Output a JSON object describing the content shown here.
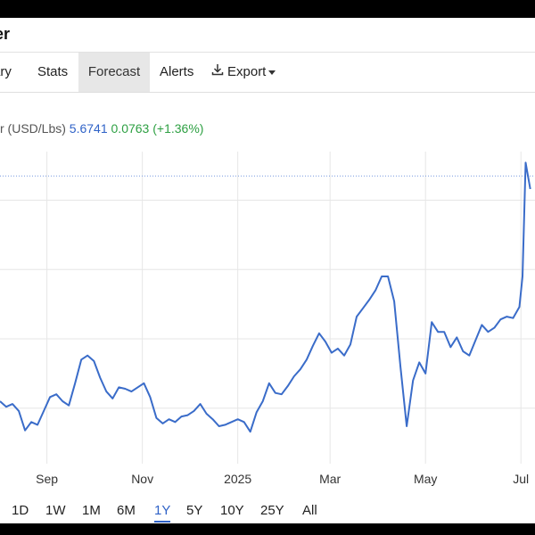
{
  "header": {
    "title": "er"
  },
  "tabs": [
    {
      "label": "ary"
    },
    {
      "label": "Stats"
    },
    {
      "label": "Forecast"
    },
    {
      "label": "Alerts"
    },
    {
      "label": "Export"
    }
  ],
  "quote": {
    "label": "r (USD/Lbs)",
    "price": "5.6741",
    "change": "0.0763",
    "change_pct": "(+1.36%)"
  },
  "ranges": [
    "1D",
    "1W",
    "1M",
    "6M",
    "1Y",
    "5Y",
    "10Y",
    "25Y",
    "All"
  ],
  "active_range": "1Y",
  "colors": {
    "line": "#3a6cc9",
    "positive": "#2ea043",
    "price": "#2f62c7",
    "active_tab_bg": "#e7e7e7"
  },
  "chart_data": {
    "type": "line",
    "x_tick_labels": [
      "Sep",
      "Nov",
      "2025",
      "Mar",
      "May",
      "Jul"
    ],
    "x_ticks": [
      "2024-09-01",
      "2024-11-01",
      "2025-01-01",
      "2025-03-01",
      "2025-05-01",
      "2025-07-01"
    ],
    "xlim": [
      "2024-08-02",
      "2025-07-10"
    ],
    "ylim": [
      3.6,
      5.85
    ],
    "last_value": 5.6741,
    "grid": true,
    "series": [
      {
        "x": [
          "2024-08-02",
          "2024-08-06",
          "2024-08-10",
          "2024-08-14",
          "2024-08-18",
          "2024-08-22",
          "2024-08-26",
          "2024-08-30",
          "2024-09-03",
          "2024-09-07",
          "2024-09-11",
          "2024-09-15",
          "2024-09-19",
          "2024-09-23",
          "2024-09-27",
          "2024-10-01",
          "2024-10-05",
          "2024-10-09",
          "2024-10-13",
          "2024-10-17",
          "2024-10-21",
          "2024-10-25",
          "2024-10-29",
          "2024-11-02",
          "2024-11-06",
          "2024-11-10",
          "2024-11-14",
          "2024-11-18",
          "2024-11-22",
          "2024-11-26",
          "2024-11-30",
          "2024-12-04",
          "2024-12-08",
          "2024-12-12",
          "2024-12-16",
          "2024-12-20",
          "2024-12-24",
          "2024-12-28",
          "2025-01-01",
          "2025-01-05",
          "2025-01-09",
          "2025-01-13",
          "2025-01-17",
          "2025-01-21",
          "2025-01-25",
          "2025-01-29",
          "2025-02-02",
          "2025-02-06",
          "2025-02-10",
          "2025-02-14",
          "2025-02-18",
          "2025-02-22",
          "2025-02-26",
          "2025-03-02",
          "2025-03-06",
          "2025-03-10",
          "2025-03-14",
          "2025-03-18",
          "2025-03-22",
          "2025-03-26",
          "2025-03-30",
          "2025-04-03",
          "2025-04-07",
          "2025-04-11",
          "2025-04-15",
          "2025-04-19",
          "2025-04-23",
          "2025-04-27",
          "2025-05-01",
          "2025-05-05",
          "2025-05-09",
          "2025-05-13",
          "2025-05-17",
          "2025-05-21",
          "2025-05-25",
          "2025-05-29",
          "2025-06-02",
          "2025-06-06",
          "2025-06-10",
          "2025-06-14",
          "2025-06-18",
          "2025-06-22",
          "2025-06-26",
          "2025-06-30",
          "2025-07-02",
          "2025-07-04",
          "2025-07-07"
        ],
        "y": [
          4.05,
          4.01,
          4.03,
          3.98,
          3.84,
          3.9,
          3.88,
          3.98,
          4.08,
          4.1,
          4.05,
          4.02,
          4.18,
          4.35,
          4.38,
          4.34,
          4.22,
          4.12,
          4.07,
          4.15,
          4.14,
          4.12,
          4.15,
          4.18,
          4.08,
          3.93,
          3.89,
          3.92,
          3.9,
          3.94,
          3.95,
          3.98,
          4.03,
          3.96,
          3.92,
          3.87,
          3.88,
          3.9,
          3.92,
          3.9,
          3.83,
          3.97,
          4.05,
          4.18,
          4.11,
          4.1,
          4.16,
          4.23,
          4.28,
          4.35,
          4.45,
          4.54,
          4.48,
          4.4,
          4.43,
          4.38,
          4.46,
          4.66,
          4.72,
          4.78,
          4.85,
          4.95,
          4.95,
          4.77,
          4.3,
          3.87,
          4.2,
          4.33,
          4.25,
          4.62,
          4.55,
          4.55,
          4.44,
          4.51,
          4.41,
          4.38,
          4.49,
          4.6,
          4.55,
          4.58,
          4.64,
          4.66,
          4.65,
          4.73,
          4.95,
          5.77,
          5.58
        ]
      }
    ]
  }
}
